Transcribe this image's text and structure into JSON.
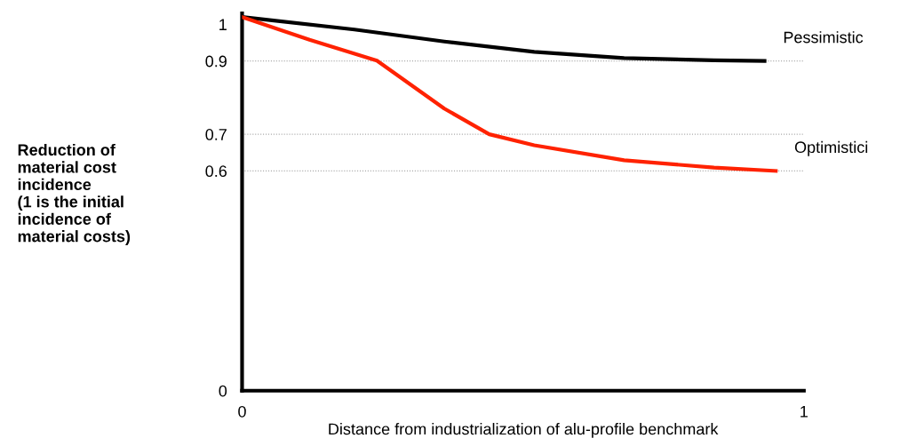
{
  "chart_data": {
    "type": "line",
    "xlabel": "Distance from industrialization of alu-profile benchmark",
    "ylabel": "Reduction of\nmaterial cost\nincidence\n(1 is the initial\nincidence of\nmaterial costs)",
    "xlim": [
      0,
      1
    ],
    "xticks": [
      0,
      1
    ],
    "ylim": [
      0,
      1.03
    ],
    "yticks": [
      0,
      0.6,
      0.7,
      0.9,
      1
    ],
    "grid": false,
    "legend": false,
    "marker": "none",
    "line_style": "solid",
    "ref_lines": [
      {
        "axis": "y",
        "value": 0.9,
        "color": "#aaaaaa",
        "line_style": "dotted"
      },
      {
        "axis": "y",
        "value": 0.7,
        "color": "#aaaaaa",
        "line_style": "dotted"
      },
      {
        "axis": "y",
        "value": 0.6,
        "color": "#aaaaaa",
        "line_style": "dotted"
      }
    ],
    "series": [
      {
        "name": "Pessimistic",
        "color": "#000000",
        "x": [
          0,
          0.2,
          0.36,
          0.52,
          0.68,
          0.84,
          0.93
        ],
        "values": [
          1.02,
          0.986,
          0.953,
          0.925,
          0.908,
          0.902,
          0.9
        ]
      },
      {
        "name": "Optimistici",
        "color": "#ff2200",
        "x": [
          0,
          0.12,
          0.24,
          0.36,
          0.44,
          0.52,
          0.68,
          0.84,
          0.95
        ],
        "values": [
          1.02,
          0.958,
          0.901,
          0.77,
          0.7,
          0.67,
          0.629,
          0.609,
          0.6
        ]
      }
    ]
  }
}
